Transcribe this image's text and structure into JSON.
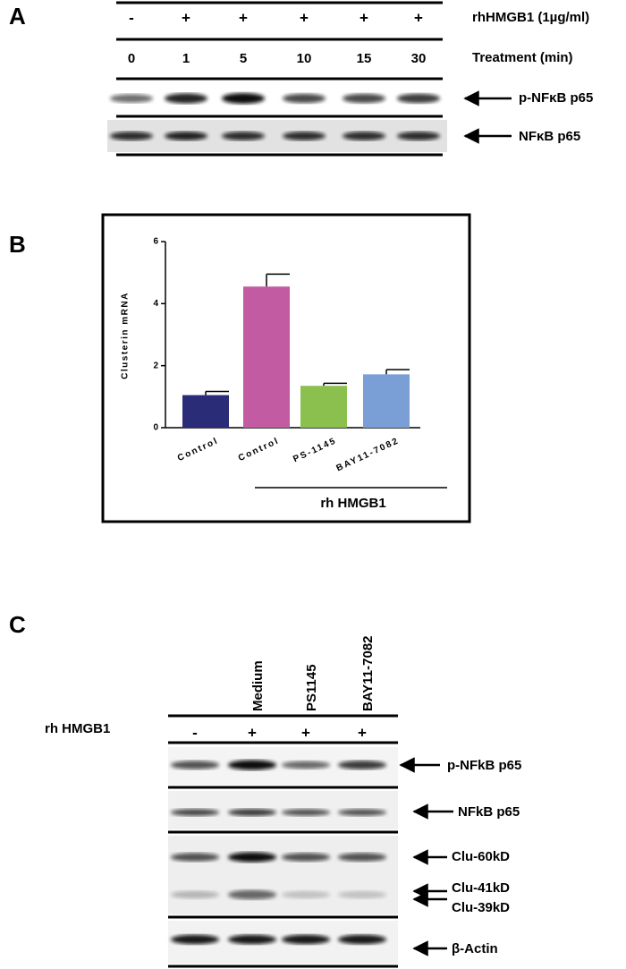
{
  "panel_a": {
    "label": "A",
    "treatment_label": "rhHMGB1 (1µg/ml)",
    "time_label": "Treatment (min)",
    "treatment": [
      "-",
      "+",
      "+",
      "+",
      "+",
      "+"
    ],
    "times": [
      "0",
      "1",
      "5",
      "10",
      "15",
      "30"
    ],
    "blots": [
      "p-NFκB p65",
      "NFκB p65"
    ]
  },
  "panel_b": {
    "label": "B"
  },
  "chart_data": {
    "type": "bar",
    "y_label": "Clusterin mRNA",
    "group_label": "rh HMGB1",
    "categories": [
      "Control",
      "Control",
      "PS-1145",
      "BAY11-7082"
    ],
    "values": [
      1.05,
      4.55,
      1.35,
      1.72
    ],
    "errors": [
      0.12,
      0.4,
      0.08,
      0.15
    ],
    "colors": [
      "#2b2c78",
      "#c25ba1",
      "#8bc04f",
      "#7a9fd6"
    ],
    "ylim": [
      0,
      6
    ],
    "yticks": [
      0,
      2,
      4,
      6
    ]
  },
  "panel_c": {
    "label": "C",
    "treatment_label": "rh HMGB1",
    "lanes": [
      "Medium",
      "PS1145",
      "BAY11-7082"
    ],
    "treatment": [
      "-",
      "+",
      "+",
      "+"
    ],
    "blots": [
      "p-NFkB p65",
      "NFkB p65",
      "Clu-60kD",
      "Clu-41kD",
      "Clu-39kD",
      "β-Actin"
    ]
  }
}
